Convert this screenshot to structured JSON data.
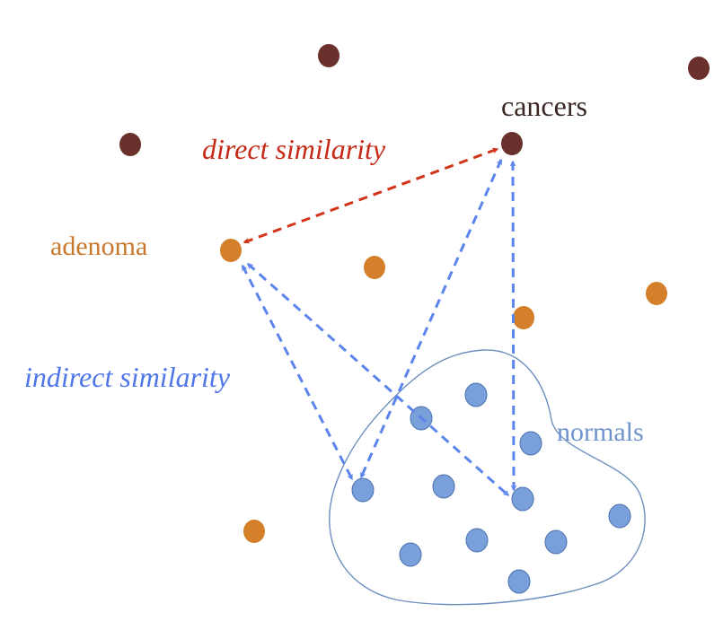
{
  "labels": {
    "cancers": "cancers",
    "adenoma": "adenoma",
    "normals": "normals",
    "direct": "direct similarity",
    "indirect": "indirect similarity"
  },
  "colors": {
    "cancer_dot": "#6a302c",
    "adenoma_dot": "#d47f2a",
    "normal_dot": "#7aa0dc",
    "normal_dot_stroke": "#4a6fae",
    "region_stroke": "#6f8fbf",
    "direct_arrow": "#d2341a",
    "indirect_arrow": "#5b85ec",
    "cancers_label": "#3a2724",
    "adenoma_label": "#c8782d",
    "normals_label": "#6e93cf",
    "direct_label": "#c62a17",
    "indirect_label": "#4e76e8"
  }
}
